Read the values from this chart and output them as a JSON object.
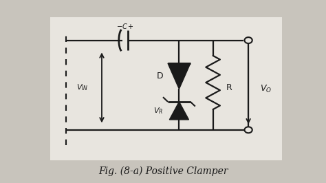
{
  "title": "Fig. (8-a) Positive Clamper",
  "background_color": "#c8c4bc",
  "line_color": "#1a1a1a",
  "text_color": "#1a1a1a",
  "fig_width": 4.74,
  "fig_height": 2.66,
  "dpi": 100
}
